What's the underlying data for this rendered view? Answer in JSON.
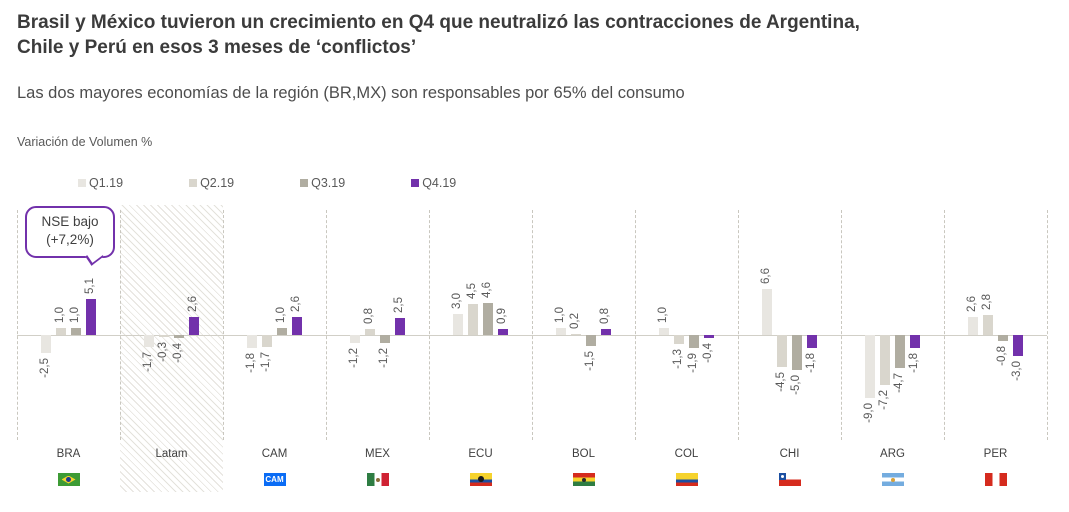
{
  "header": {
    "title_line1": "Brasil y México tuvieron un crecimiento en Q4 que neutralizó las contracciones de Argentina,",
    "title_line2": "Chile y Perú en esos 3 meses de ‘conflictos’",
    "subtitle": "Las dos mayores economías de la región (BR,MX) son responsables por 65% del consumo"
  },
  "chart_data": {
    "type": "bar",
    "title": "Variación de Volumen %",
    "ylabel": "Variación de Volumen %",
    "decimal_separator": ",",
    "grid": false,
    "legend_position": "top",
    "categories": [
      "BRA",
      "Latam",
      "CAM",
      "MEX",
      "ECU",
      "BOL",
      "COL",
      "CHI",
      "ARG",
      "PER"
    ],
    "series": [
      {
        "name": "Q1.19",
        "color": "#e8e6e1",
        "values": [
          -2.5,
          -1.7,
          -1.8,
          -1.2,
          3.0,
          1.0,
          1.0,
          6.6,
          -9.0,
          2.6
        ]
      },
      {
        "name": "Q2.19",
        "color": "#d9d6cd",
        "values": [
          1.0,
          -0.3,
          -1.7,
          0.8,
          4.5,
          0.2,
          -1.3,
          -4.5,
          -7.2,
          2.8
        ]
      },
      {
        "name": "Q3.19",
        "color": "#b0ada1",
        "values": [
          1.0,
          -0.4,
          1.0,
          -1.2,
          4.6,
          -1.5,
          -1.9,
          -5.0,
          -4.7,
          -0.8
        ]
      },
      {
        "name": "Q4.19",
        "color": "#7231ab",
        "values": [
          5.1,
          2.6,
          2.6,
          2.5,
          0.9,
          0.8,
          -0.4,
          -1.8,
          -1.8,
          -3.0
        ]
      }
    ],
    "ylim": [
      -10,
      8
    ],
    "highlighted_category": "Latam",
    "annotation": {
      "line1": "NSE bajo",
      "line2": "(+7,2%)",
      "target_category": "BRA",
      "target_series": "Q4.19",
      "color": "#7231ab"
    }
  },
  "flags": [
    {
      "country": "BRA",
      "flag": "bra",
      "icon": "brazil-flag-icon",
      "text": ""
    },
    {
      "country": "Latam",
      "flag": null,
      "icon": "",
      "text": ""
    },
    {
      "country": "CAM",
      "flag": "cam",
      "icon": "central-america-flag-icon",
      "text": "CAM"
    },
    {
      "country": "MEX",
      "flag": "mex",
      "icon": "mexico-flag-icon",
      "text": ""
    },
    {
      "country": "ECU",
      "flag": "ecu",
      "icon": "ecuador-flag-icon",
      "text": ""
    },
    {
      "country": "BOL",
      "flag": "bol",
      "icon": "bolivia-flag-icon",
      "text": ""
    },
    {
      "country": "COL",
      "flag": "col",
      "icon": "colombia-flag-icon",
      "text": ""
    },
    {
      "country": "CHI",
      "flag": "chi",
      "icon": "chile-flag-icon",
      "text": ""
    },
    {
      "country": "ARG",
      "flag": "arg",
      "icon": "argentina-flag-icon",
      "text": ""
    },
    {
      "country": "PER",
      "flag": "per",
      "icon": "peru-flag-icon",
      "text": ""
    }
  ]
}
